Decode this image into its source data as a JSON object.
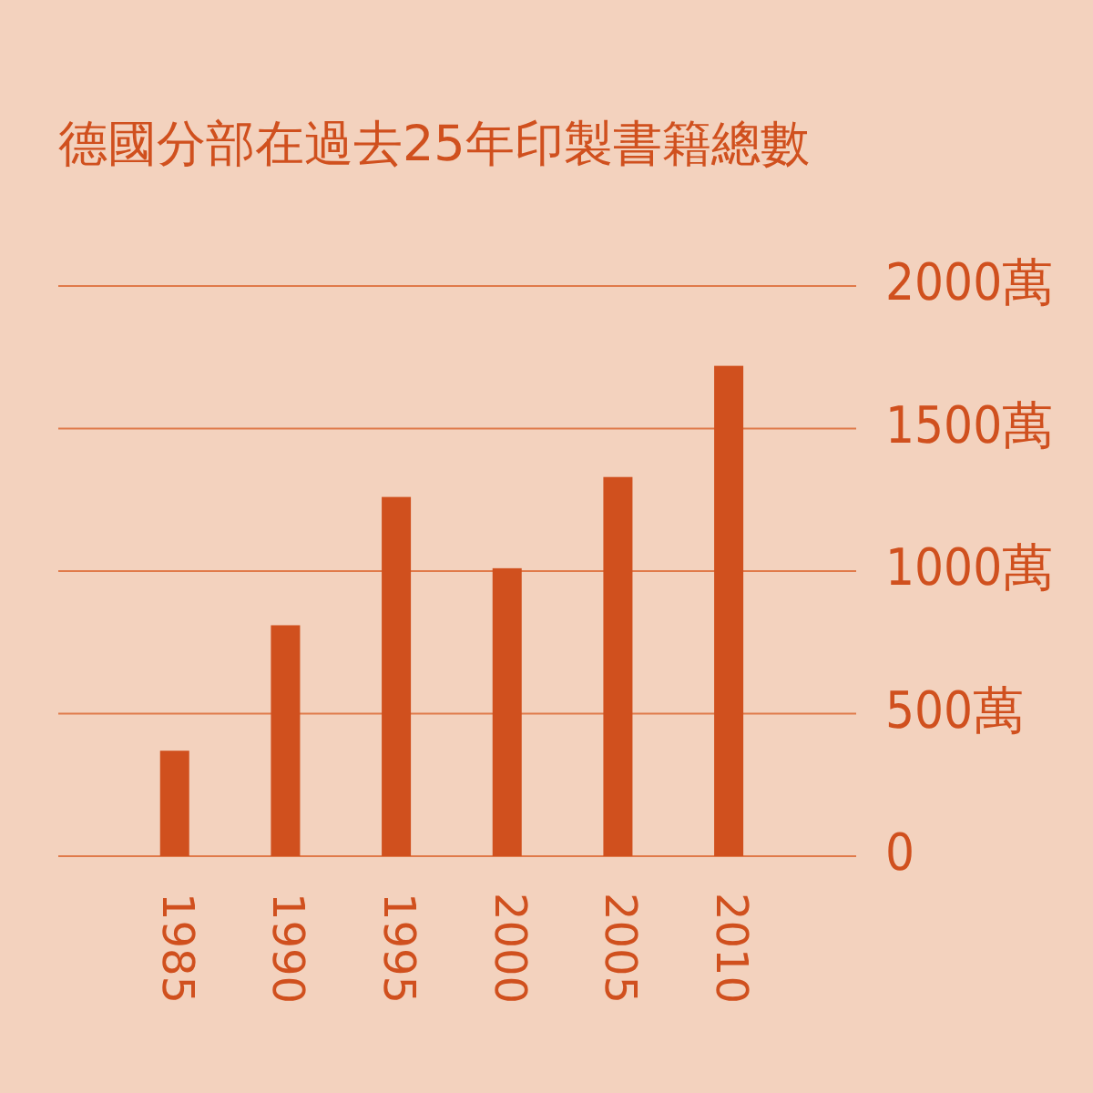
{
  "chart_data": {
    "type": "bar",
    "title": "德國分部在過去25年印製書籍總數",
    "categories": [
      "1985",
      "1990",
      "1995",
      "2000",
      "2005",
      "2010"
    ],
    "values": [
      370,
      810,
      1260,
      1010,
      1330,
      1720
    ],
    "color": "#d0501e",
    "ylim": [
      0,
      2000
    ],
    "yticks": [
      0,
      {
        "value": 500,
        "label": "500萬"
      },
      {
        "value": 1000,
        "label": "1000萬"
      },
      {
        "value": 1500,
        "label": "1500萬"
      },
      {
        "value": 2000,
        "label": "2000萬"
      }
    ],
    "grid": "y"
  }
}
